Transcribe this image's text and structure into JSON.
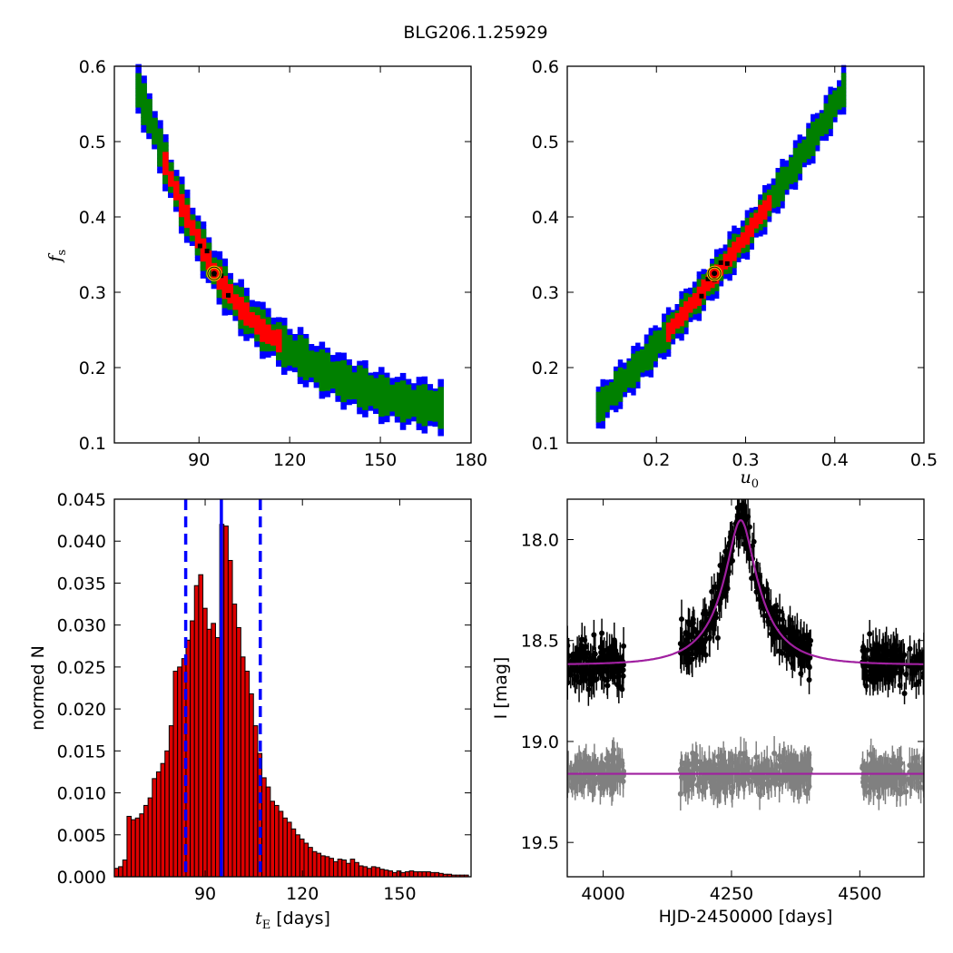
{
  "figure_title": "BLG206.1.25929",
  "colors": {
    "sigma3": "#0000ff",
    "sigma2": "#008000",
    "sigma1": "#ff0000",
    "grid_best": "#000000",
    "best_fit_marker": "#ffd700",
    "hist_bar": "#dd0000",
    "median_line": "#0000ff",
    "model_line": "#a020a0",
    "lc_black": "#000000",
    "lc_gray": "#808080"
  },
  "chart_data": [
    {
      "id": "tE_vs_fs",
      "type": "heatmap",
      "xlim": [
        62,
        180
      ],
      "ylim": [
        0.1,
        0.6
      ],
      "xticks": [
        90,
        120,
        150,
        180
      ],
      "yticks": [
        0.1,
        0.2,
        0.3,
        0.4,
        0.5,
        0.6
      ],
      "xlabel": "",
      "ylabel": "f",
      "ylabel_sub": "s",
      "best_fit": {
        "x": 95,
        "y": 0.325
      },
      "confidence_band": {
        "centerline": [
          [
            70,
            0.57
          ],
          [
            75,
            0.52
          ],
          [
            80,
            0.46
          ],
          [
            85,
            0.41
          ],
          [
            90,
            0.37
          ],
          [
            95,
            0.33
          ],
          [
            100,
            0.3
          ],
          [
            105,
            0.275
          ],
          [
            110,
            0.255
          ],
          [
            120,
            0.225
          ],
          [
            130,
            0.2
          ],
          [
            140,
            0.18
          ],
          [
            150,
            0.165
          ],
          [
            160,
            0.155
          ],
          [
            170,
            0.148
          ]
        ],
        "sigma1_x_range": [
          78,
          117
        ],
        "half_width": {
          "sigma1": 0.012,
          "sigma2": 0.022,
          "sigma3": 0.03
        }
      }
    },
    {
      "id": "u0_vs_fs",
      "type": "heatmap",
      "xlim": [
        0.1,
        0.5
      ],
      "ylim": [
        0.1,
        0.6
      ],
      "xticks": [
        0.2,
        0.3,
        0.4,
        0.5
      ],
      "yticks": [
        0.1,
        0.2,
        0.3,
        0.4,
        0.5,
        0.6
      ],
      "xlabel": "u",
      "xlabel_sub": "0",
      "ylabel": "",
      "best_fit": {
        "x": 0.265,
        "y": 0.325
      },
      "confidence_band": {
        "centerline": [
          [
            0.135,
            0.148
          ],
          [
            0.2,
            0.23
          ],
          [
            0.25,
            0.3
          ],
          [
            0.3,
            0.375
          ],
          [
            0.35,
            0.46
          ],
          [
            0.4,
            0.55
          ],
          [
            0.41,
            0.57
          ]
        ],
        "sigma1_x_range": [
          0.21,
          0.33
        ],
        "half_width": {
          "sigma1": 0.01,
          "sigma2": 0.018,
          "sigma3": 0.026
        }
      }
    },
    {
      "id": "tE_histogram",
      "type": "bar",
      "xlim": [
        62,
        172
      ],
      "ylim": [
        0,
        0.045
      ],
      "xticks": [
        90,
        120,
        150
      ],
      "yticks": [
        0.0,
        0.005,
        0.01,
        0.015,
        0.02,
        0.025,
        0.03,
        0.035,
        0.04,
        0.045
      ],
      "ytick_labels": [
        "0.000",
        "0.005",
        "0.010",
        "0.015",
        "0.020",
        "0.025",
        "0.030",
        "0.035",
        "0.040",
        "0.045"
      ],
      "xlabel_math": "t",
      "xlabel_sub": "E",
      "xlabel_rest": " [days]",
      "ylabel": "normed N",
      "bin_start": 62,
      "bin_width": 1.3,
      "values": [
        0.001,
        0.0012,
        0.002,
        0.0072,
        0.0068,
        0.007,
        0.0075,
        0.0085,
        0.0094,
        0.0117,
        0.0125,
        0.0135,
        0.015,
        0.018,
        0.0245,
        0.025,
        0.026,
        0.0282,
        0.0305,
        0.0347,
        0.036,
        0.032,
        0.0295,
        0.0302,
        0.0285,
        0.042,
        0.0418,
        0.0377,
        0.0325,
        0.0297,
        0.0262,
        0.0245,
        0.0218,
        0.018,
        0.0147,
        0.0118,
        0.0107,
        0.009,
        0.0085,
        0.0078,
        0.007,
        0.0065,
        0.0057,
        0.005,
        0.0045,
        0.004,
        0.0035,
        0.003,
        0.0028,
        0.0025,
        0.0024,
        0.0022,
        0.0018,
        0.0021,
        0.002,
        0.0016,
        0.0021,
        0.0017,
        0.0013,
        0.0012,
        0.001,
        0.0012,
        0.0011,
        0.0009,
        0.0008,
        0.0007,
        0.0005,
        0.0007,
        0.0005,
        0.0006,
        0.0007,
        0.0006,
        0.0006,
        0.0006,
        0.0006,
        0.0005,
        0.0005,
        0.0004,
        0.0003,
        0.0003,
        0.0002,
        0.0002,
        0.0002,
        0.0002
      ],
      "median_line": 95,
      "interval_lines": [
        84,
        107
      ]
    },
    {
      "id": "light_curve",
      "type": "scatter",
      "xlim": [
        3930,
        4625
      ],
      "ylim": [
        19.67,
        17.8
      ],
      "xticks": [
        4000,
        4250,
        4500
      ],
      "yticks": [
        18.0,
        18.5,
        19.0,
        19.5
      ],
      "ytick_labels": [
        "18.0",
        "18.5",
        "19.0",
        "19.5"
      ],
      "xlabel": "HJD-2450000 [days]",
      "ylabel": "I [mag]",
      "model": {
        "t0": 4268,
        "tE": 95,
        "u0": 0.265,
        "fs": 0.325,
        "baseline": 18.62
      },
      "residual_baseline": 19.16,
      "observing_seasons": [
        [
          3930,
          4040
        ],
        [
          4150,
          4405
        ],
        [
          4505,
          4625
        ]
      ]
    }
  ]
}
